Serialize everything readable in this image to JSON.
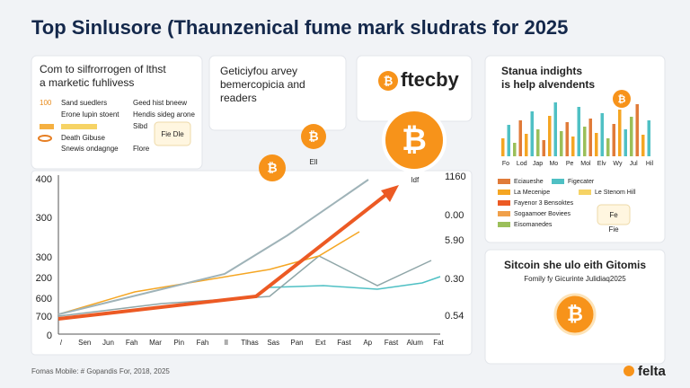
{
  "header": {
    "title": "Top Sinlusore (Thaunzenical fume mark sludrats for 2025"
  },
  "card1": {
    "title": [
      "Com to silfrorrogen of lthst",
      "a marketic fuhlivess"
    ],
    "rows": [
      "100",
      "Sand suedlers",
      "Geed hist bneew",
      "Erone lupin stoent",
      "Hendis sideg arone",
      "Death Gibuse",
      "Sibd",
      "Snewis ondagnge",
      "Flore"
    ],
    "badge": "Fie Dle"
  },
  "card2": {
    "lines": [
      "Geticiyfou arvey",
      "bemercopicia and",
      "readers"
    ]
  },
  "card3": {
    "brand": "ftecby"
  },
  "card4": {
    "title": [
      "Stanua indights",
      "is help alvendents"
    ],
    "x_labels": [
      "Fo",
      "Lod",
      "Jap",
      "Mo",
      "Pe",
      "Mol",
      "Elv",
      "Wy",
      "Jul",
      "Hil"
    ],
    "legend": [
      "La Mecenipe",
      "Fayenor 3 Bensoktes",
      "Sogaamoer Boviees",
      "Eisomanedes",
      "Eciaueshe",
      "Figecater",
      "Le Stenom Hill"
    ],
    "badge": "Fe",
    "note": "Fie"
  },
  "card5": {
    "title": "Sitcoin she ulo eith Gitomis",
    "subtitle": "Fomily fy Gicurinte Julidiaq2025"
  },
  "chart": {
    "y_labels": [
      "400",
      "300",
      "300",
      "200",
      "600",
      "700",
      "0"
    ],
    "right_labels": [
      "1160",
      "0.00",
      "5.90",
      "0.30",
      "0.54"
    ],
    "x_labels": [
      "/",
      "Sen",
      "Jun",
      "Fah",
      "Mar",
      "Pin",
      "Fah",
      "Il",
      "Tlhas",
      "Sas",
      "Pan",
      "Ext",
      "Fast",
      "Ap",
      "Fast",
      "Alum",
      "Fat"
    ],
    "notes": [
      "Ell",
      "ldf"
    ]
  },
  "bitcoin_symbol": "₿",
  "footer": {
    "source": "Fomas Mobile: # Gopandis For, 2018, 2025",
    "logo": "felta"
  }
}
